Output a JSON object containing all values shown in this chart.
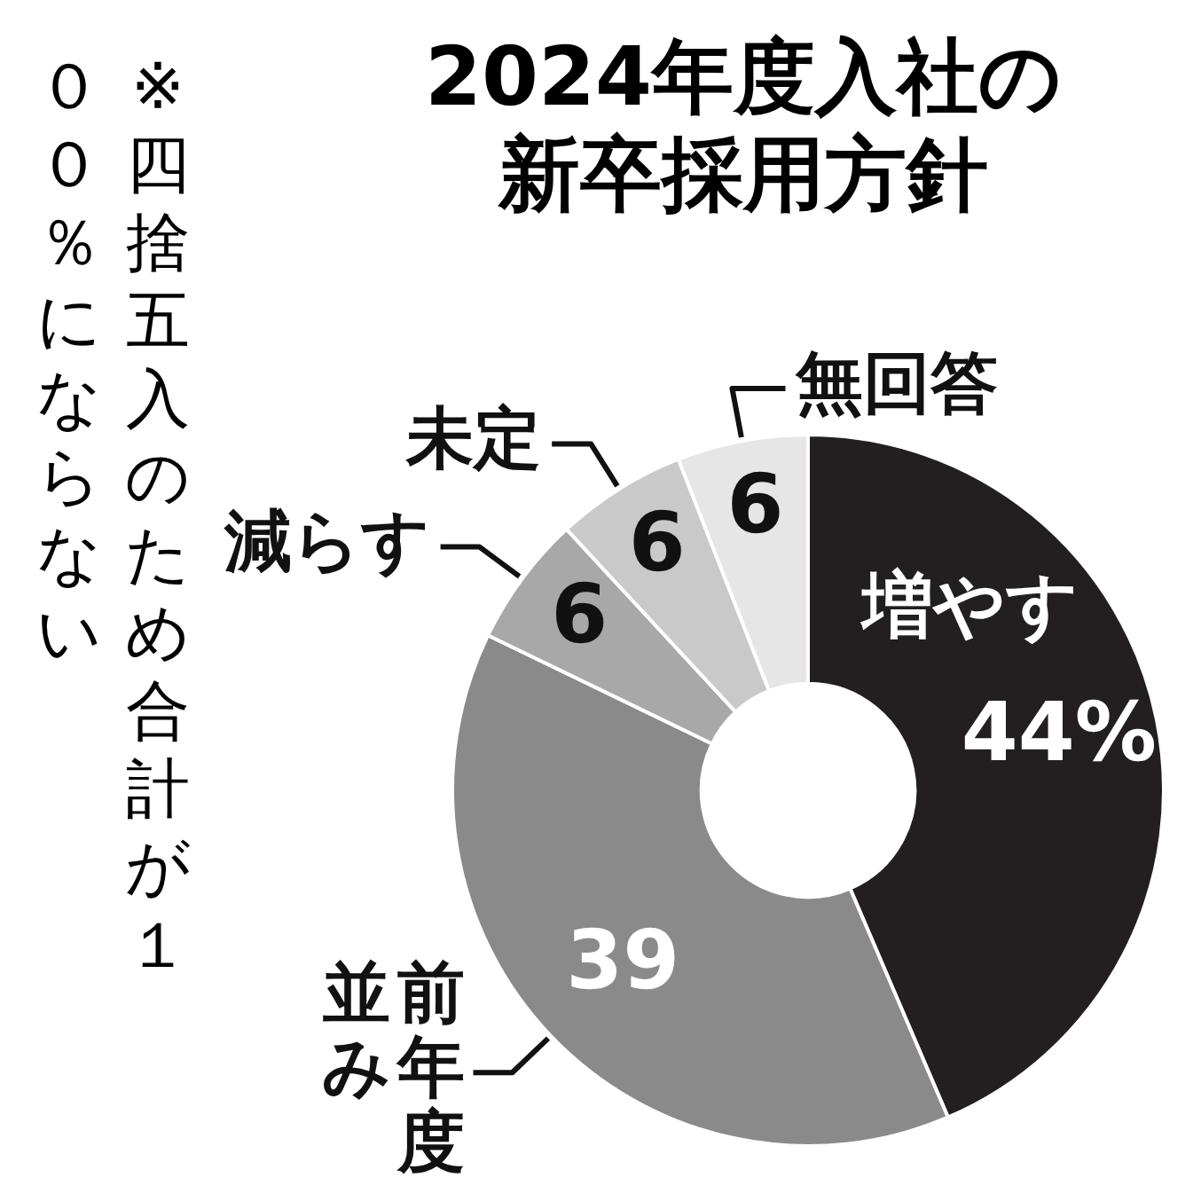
{
  "chart_data": {
    "type": "donut",
    "title": "2024年度入社の新卒採用方針",
    "categories": [
      "増やす",
      "前年度並み",
      "減らす",
      "未定",
      "無回答"
    ],
    "values": [
      44,
      39,
      6,
      6,
      6
    ],
    "colors": [
      "#231f20",
      "#8a8a8a",
      "#a8a8a8",
      "#c9c9c9",
      "#e6e6e6"
    ],
    "value_labels": [
      "44%",
      "39",
      "6",
      "6",
      "6"
    ],
    "annotations": [
      "※四捨五入のため合計が１００％にならない"
    ],
    "legend": false
  }
}
